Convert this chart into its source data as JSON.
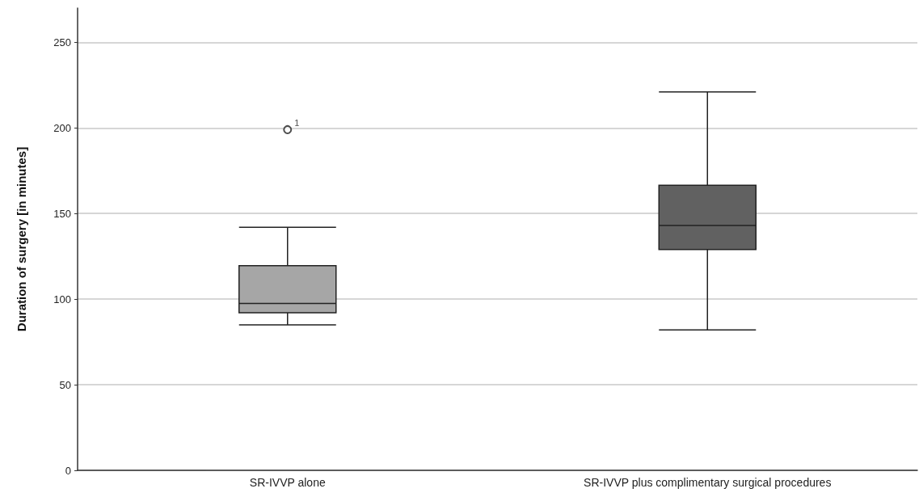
{
  "chart_data": {
    "type": "box",
    "ylabel": "Duration of surgery [in minutes]",
    "categories": [
      "SR-IVVP alone",
      "SR-IVVP plus complimentary surgical procedures"
    ],
    "boxes": [
      {
        "low": 85,
        "q1": 92,
        "median": 97.5,
        "q3": 119.5,
        "high": 142,
        "outliers": [
          199
        ]
      },
      {
        "low": 82,
        "q1": 129,
        "median": 143,
        "q3": 166.5,
        "high": 221
      }
    ],
    "colors": [
      "#a6a6a6",
      "#616161"
    ],
    "ylim": [
      0,
      270
    ],
    "yticks": [
      0,
      50,
      100,
      150,
      200,
      250
    ],
    "grid": "y",
    "annotations": [
      "1"
    ]
  }
}
